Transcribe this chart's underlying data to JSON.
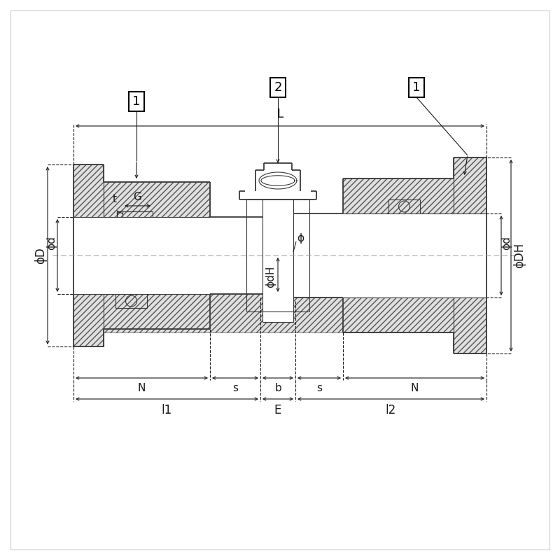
{
  "bg_color": "#ffffff",
  "line_color": "#3a3a3a",
  "dim_color": "#1a1a1a",
  "hatch_fc": "#e0e0e0",
  "labels": {
    "part1": "1",
    "part2": "2",
    "dim_L": "L",
    "dim_phi_D": "ϕD",
    "dim_phi_d_left": "ϕd",
    "dim_phi_d_right": "ϕd",
    "dim_phi_DH": "ϕDH",
    "dim_phi_dH": "ϕdH",
    "dim_phi": "ϕ",
    "dim_t": "t",
    "dim_G": "G",
    "dim_N_left": "N",
    "dim_N_right": "N",
    "dim_s_left": "s",
    "dim_s_right": "s",
    "dim_b": "b",
    "dim_l1": "l1",
    "dim_E": "E",
    "dim_l2": "l2"
  },
  "fig_width": 8.0,
  "fig_height": 8.0,
  "dpi": 100
}
